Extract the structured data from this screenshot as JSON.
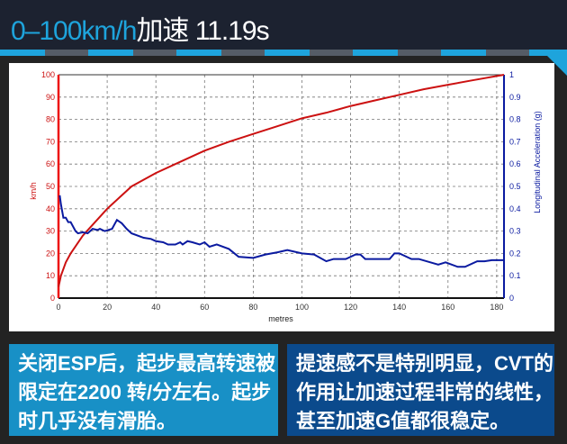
{
  "header": {
    "title_accent": "0–100km/h",
    "title_rest": "加速 11.19s"
  },
  "notes": {
    "left": "关闭ESP后，起步最高转速被限定在2200 转/分左右。起步时几乎没有滑胎。",
    "right": "提速感不是特别明显，CVT的作用让加速过程非常的线性，甚至加速G值都很稳定。"
  },
  "chart_data": {
    "type": "line",
    "title": "",
    "xlabel": "metres",
    "ylabel": "km/h",
    "y2label": "Longitudinal Acceleration (g)",
    "xlim": [
      0,
      183
    ],
    "ylim": [
      0,
      100
    ],
    "y2lim": [
      0,
      1
    ],
    "grid": true,
    "xticks": [
      0,
      20,
      40,
      60,
      80,
      100,
      120,
      140,
      160,
      180
    ],
    "yticks": [
      0,
      10,
      20,
      30,
      40,
      50,
      60,
      70,
      80,
      90,
      100
    ],
    "y2ticks": [
      0,
      0.1,
      0.2,
      0.3,
      0.4,
      0.5,
      0.6,
      0.7,
      0.8,
      0.9,
      1
    ],
    "colors": {
      "speed": "#cc1111",
      "accel": "#0a1aa0"
    },
    "series": [
      {
        "axis": "left",
        "x": [
          0,
          1,
          3,
          5,
          10,
          15,
          20,
          25,
          30,
          40,
          50,
          60,
          70,
          80,
          90,
          100,
          110,
          120,
          130,
          140,
          150,
          160,
          170,
          183
        ],
        "y": [
          5,
          10,
          16,
          20,
          28,
          34,
          40,
          45,
          50,
          56,
          61,
          66,
          70,
          73.5,
          77,
          80.5,
          83,
          86,
          88.5,
          91,
          93.5,
          95.5,
          97.5,
          100
        ]
      },
      {
        "axis": "right",
        "x": [
          0.5,
          1,
          2,
          3,
          4,
          5,
          7,
          8,
          10,
          12,
          14,
          16,
          17,
          19,
          22,
          24,
          26,
          28,
          30,
          35,
          38,
          40,
          43,
          45,
          48,
          50,
          51,
          53,
          55,
          58,
          60,
          62,
          65,
          70,
          74,
          80,
          85,
          90,
          94,
          100,
          105,
          110,
          113,
          118,
          122,
          124,
          126,
          136,
          138,
          140,
          145,
          148,
          156,
          159,
          164,
          167,
          172,
          175,
          178,
          183
        ],
        "y": [
          0.46,
          0.42,
          0.36,
          0.36,
          0.34,
          0.34,
          0.3,
          0.29,
          0.295,
          0.29,
          0.31,
          0.305,
          0.31,
          0.3,
          0.31,
          0.35,
          0.335,
          0.31,
          0.29,
          0.27,
          0.265,
          0.255,
          0.25,
          0.24,
          0.24,
          0.25,
          0.24,
          0.255,
          0.25,
          0.24,
          0.25,
          0.23,
          0.24,
          0.22,
          0.185,
          0.18,
          0.195,
          0.205,
          0.215,
          0.2,
          0.195,
          0.165,
          0.175,
          0.175,
          0.195,
          0.195,
          0.175,
          0.175,
          0.2,
          0.2,
          0.175,
          0.175,
          0.15,
          0.16,
          0.14,
          0.14,
          0.165,
          0.165,
          0.17,
          0.17
        ]
      }
    ]
  }
}
